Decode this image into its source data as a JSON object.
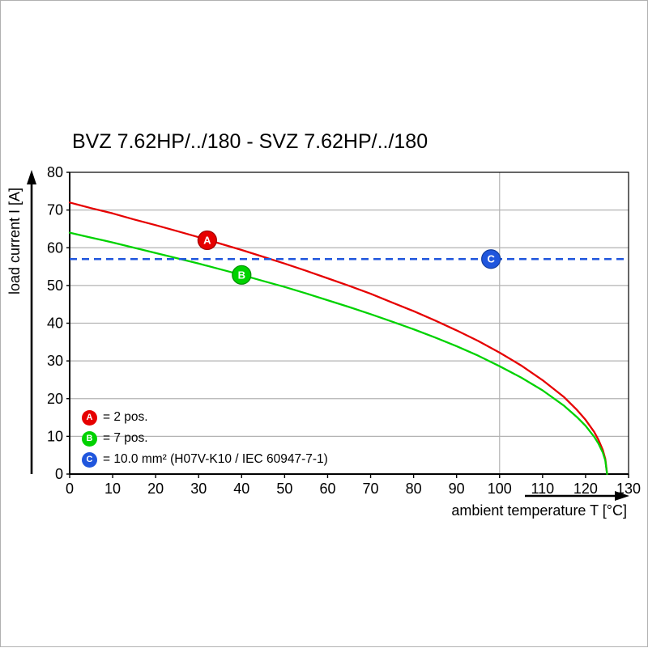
{
  "chart_data": {
    "type": "line",
    "title": "BVZ 7.62HP/../180 - SVZ 7.62HP/../180",
    "xlabel": "ambient temperature T [°C]",
    "ylabel": "load current I [A]",
    "xlim": [
      0,
      130
    ],
    "ylim": [
      0,
      80
    ],
    "x_ticks": [
      0,
      10,
      20,
      30,
      40,
      50,
      60,
      70,
      80,
      90,
      100,
      110,
      120,
      130
    ],
    "y_ticks": [
      0,
      10,
      20,
      30,
      40,
      50,
      60,
      70,
      80
    ],
    "v_gridlines": [
      100
    ],
    "grid_color": "#b3b3b3",
    "axis_color": "#000000",
    "legend_position": "bottom-left-inside",
    "series": [
      {
        "name": "A",
        "label": "2 pos.",
        "type": "curve",
        "color": "#e60000",
        "edge": "#9e0000",
        "points": [
          [
            0,
            72
          ],
          [
            5,
            70.5
          ],
          [
            10,
            69.1
          ],
          [
            15,
            67.5
          ],
          [
            20,
            66.0
          ],
          [
            25,
            64.4
          ],
          [
            30,
            62.8
          ],
          [
            35,
            61.1
          ],
          [
            40,
            59.4
          ],
          [
            45,
            57.6
          ],
          [
            50,
            55.8
          ],
          [
            55,
            53.9
          ],
          [
            60,
            51.9
          ],
          [
            65,
            49.9
          ],
          [
            70,
            47.8
          ],
          [
            75,
            45.5
          ],
          [
            80,
            43.2
          ],
          [
            85,
            40.7
          ],
          [
            90,
            38.1
          ],
          [
            95,
            35.3
          ],
          [
            100,
            32.2
          ],
          [
            105,
            28.8
          ],
          [
            110,
            24.9
          ],
          [
            115,
            20.4
          ],
          [
            118,
            17.0
          ],
          [
            120,
            14.4
          ],
          [
            122,
            11.2
          ],
          [
            123,
            9.1
          ],
          [
            124,
            6.4
          ],
          [
            124.6,
            4.0
          ],
          [
            125,
            0
          ]
        ]
      },
      {
        "name": "B",
        "label": "7 pos.",
        "type": "curve",
        "color": "#00d200",
        "edge": "#009000",
        "points": [
          [
            0,
            64
          ],
          [
            5,
            62.7
          ],
          [
            10,
            61.4
          ],
          [
            15,
            60.0
          ],
          [
            20,
            58.6
          ],
          [
            25,
            57.2
          ],
          [
            30,
            55.8
          ],
          [
            35,
            54.3
          ],
          [
            40,
            52.8
          ],
          [
            45,
            51.2
          ],
          [
            50,
            49.6
          ],
          [
            55,
            47.9
          ],
          [
            60,
            46.1
          ],
          [
            65,
            44.3
          ],
          [
            70,
            42.4
          ],
          [
            75,
            40.4
          ],
          [
            80,
            38.4
          ],
          [
            85,
            36.2
          ],
          [
            90,
            33.9
          ],
          [
            95,
            31.4
          ],
          [
            100,
            28.6
          ],
          [
            105,
            25.6
          ],
          [
            110,
            22.2
          ],
          [
            115,
            18.1
          ],
          [
            118,
            15.1
          ],
          [
            120,
            12.8
          ],
          [
            122,
            9.9
          ],
          [
            123,
            8.1
          ],
          [
            124,
            5.7
          ],
          [
            124.6,
            3.6
          ],
          [
            125,
            0
          ]
        ]
      },
      {
        "name": "C",
        "label": "10.0 mm² (H07V-K10 / IEC 60947-7-1)",
        "type": "dashed-horizontal",
        "color": "#2056dd",
        "edge": "#123c9e",
        "value": 57
      }
    ],
    "markers": [
      {
        "letter": "A",
        "x": 32,
        "y": 62,
        "color": "#e60000",
        "edge": "#9e0000"
      },
      {
        "letter": "B",
        "x": 40,
        "y": 52.8,
        "color": "#00d200",
        "edge": "#009000"
      },
      {
        "letter": "C",
        "x": 98,
        "y": 57,
        "color": "#2056dd",
        "edge": "#123c9e"
      }
    ],
    "legend": [
      {
        "letter": "A",
        "label": "= 2 pos.",
        "color": "#e60000"
      },
      {
        "letter": "B",
        "label": "= 7 pos.",
        "color": "#00d200"
      },
      {
        "letter": "C",
        "label": "= 10.0 mm² (H07V-K10 / IEC 60947-7-1)",
        "color": "#2056dd"
      }
    ]
  }
}
